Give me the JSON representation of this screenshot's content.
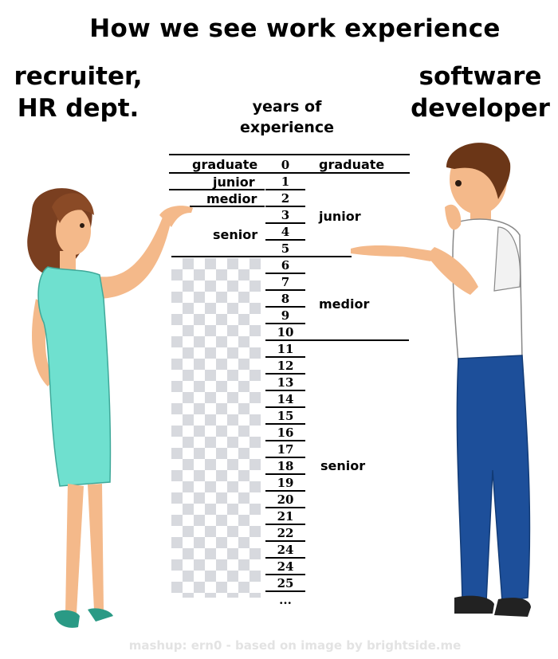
{
  "title": "How we see work experience",
  "left_header": [
    "recruiter,",
    "HR dept."
  ],
  "right_header": [
    "software",
    "developer"
  ],
  "axis_label": [
    "years of",
    "experience"
  ],
  "years": [
    "0",
    "1",
    "2",
    "3",
    "4",
    "5",
    "6",
    "7",
    "8",
    "9",
    "10",
    "11",
    "12",
    "13",
    "14",
    "15",
    "16",
    "17",
    "18",
    "19",
    "20",
    "21",
    "22",
    "24",
    "24",
    "25",
    "..."
  ],
  "recruiter_levels": {
    "graduate": "graduate",
    "junior": "junior",
    "medior": "medior",
    "senior": "senior"
  },
  "developer_levels": {
    "graduate": "graduate",
    "junior": "junior",
    "medior": "medior",
    "senior": "senior"
  },
  "footer": "mashup: ern0 - based on image by brightside.me",
  "colors": {
    "dress": "#6fe0cf",
    "hair": "#7a3f20",
    "skin": "#f4b98a",
    "shirt": "#ffffff",
    "jeans": "#1d4f9a",
    "checker": "#d7d9de"
  }
}
